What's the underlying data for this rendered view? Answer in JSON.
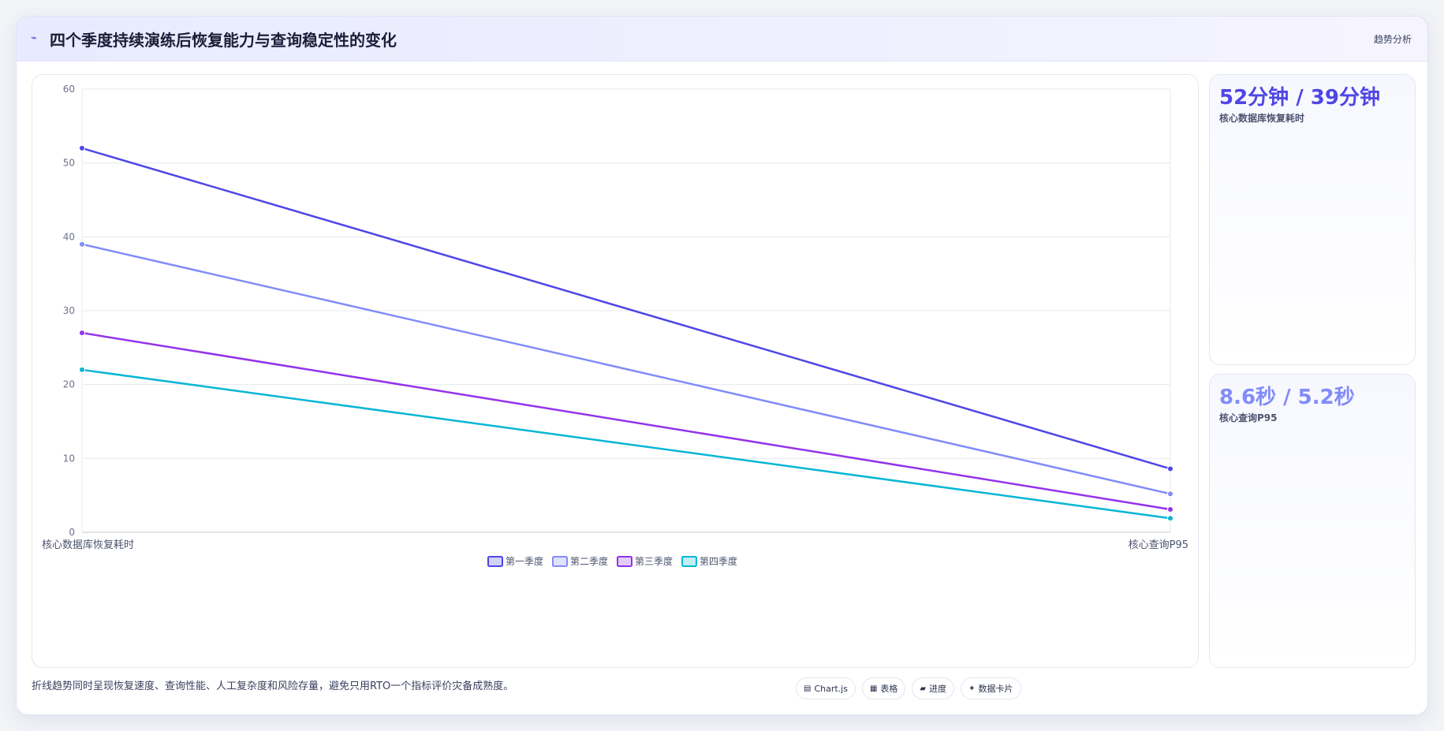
{
  "header": {
    "icon": "trend-line-icon",
    "title": "四个季度持续演练后恢复能力与查询稳定性的变化",
    "right_label": "趋势分析"
  },
  "kpis": [
    {
      "value": "52分钟 / 39分钟",
      "label": "核心数据库恢复耗时",
      "color": "#4f46e5"
    },
    {
      "value": "8.6秒 / 5.2秒",
      "label": "核心查询P95",
      "color": "#818cf8"
    }
  ],
  "footer": {
    "note": "折线趋势同时呈现恢复速度、查询性能、人工复杂度和风险存量，避免只用RTO一个指标评价灾备成熟度。",
    "pills": [
      {
        "icon": "chart-icon",
        "glyph": "▤",
        "label": "Chart.js"
      },
      {
        "icon": "table-icon",
        "glyph": "▦",
        "label": "表格"
      },
      {
        "icon": "progress-icon",
        "glyph": "▰",
        "label": "进度"
      },
      {
        "icon": "card-icon",
        "glyph": "✦",
        "label": "数据卡片"
      }
    ]
  },
  "chart_data": {
    "type": "line",
    "categories": [
      "核心数据库恢复耗时",
      "核心查询P95"
    ],
    "ylim": [
      0,
      60
    ],
    "yticks": [
      0,
      10,
      20,
      30,
      40,
      50,
      60
    ],
    "grid": true,
    "legend_position": "bottom",
    "series": [
      {
        "name": "第一季度",
        "values": [
          52,
          8.6
        ],
        "color": "#4f46e5"
      },
      {
        "name": "第二季度",
        "values": [
          39,
          5.2
        ],
        "color": "#818cf8"
      },
      {
        "name": "第三季度",
        "values": [
          27,
          3.1
        ],
        "color": "#9333ea"
      },
      {
        "name": "第四季度",
        "values": [
          22,
          1.9
        ],
        "color": "#06b6d4"
      }
    ]
  }
}
